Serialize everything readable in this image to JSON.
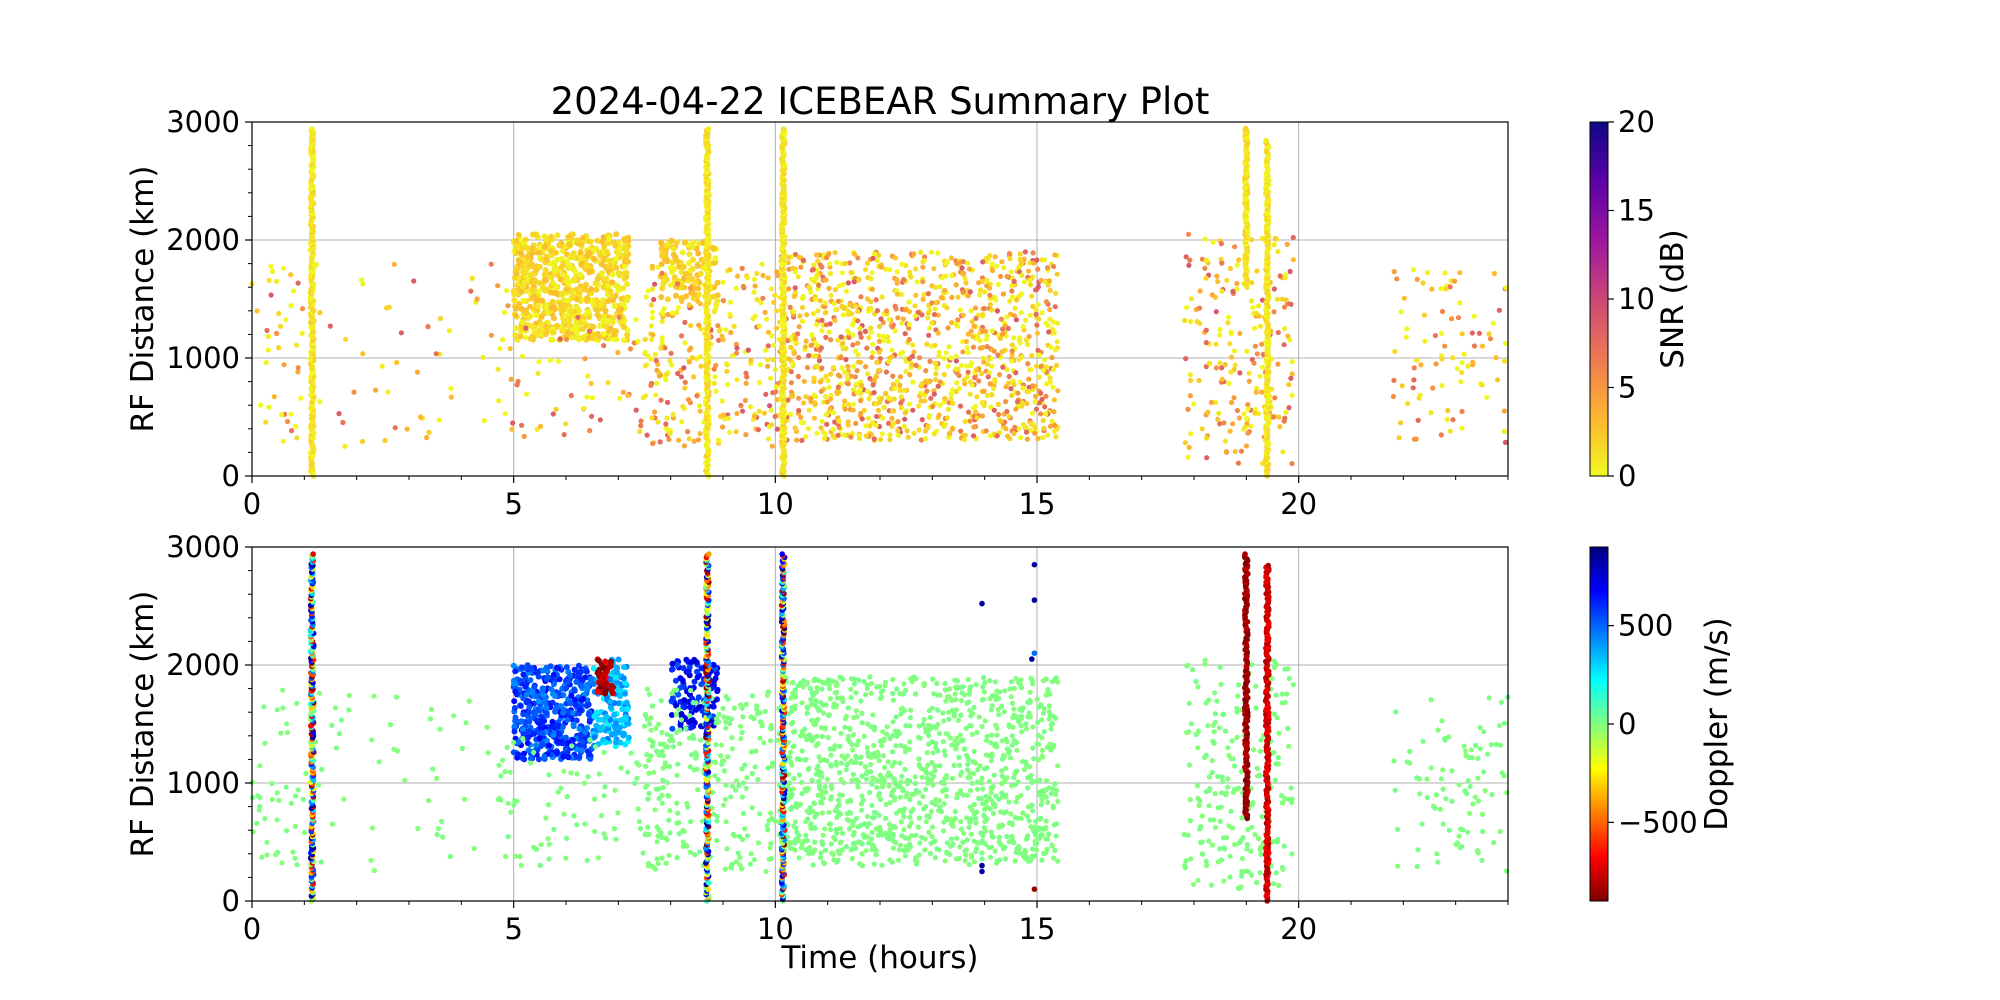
{
  "figure": {
    "title": "2024-04-22 ICEBEAR Summary Plot"
  },
  "chart_data": [
    {
      "type": "scatter",
      "panel": "snr",
      "title": "2024-04-22 ICEBEAR Summary Plot",
      "xlabel": "",
      "ylabel": "RF Distance (km)",
      "xlim": [
        0,
        24
      ],
      "ylim": [
        0,
        3000
      ],
      "xticks": [
        0,
        5,
        10,
        15,
        20
      ],
      "yticks": [
        0,
        1000,
        2000,
        3000
      ],
      "grid": true,
      "colorbar": {
        "label": "SNR (dB)",
        "range": [
          0,
          20
        ],
        "ticks": [
          0,
          5,
          10,
          15,
          20
        ],
        "colormap": "plasma_r",
        "colors": [
          "#f0f921",
          "#fdb42f",
          "#ed7953",
          "#cc4778",
          "#9c179e",
          "#5c01a6",
          "#0d0887"
        ]
      },
      "segments": [
        {
          "x": [
            0.0,
            1.0
          ],
          "y": [
            250,
            1800
          ],
          "n": 40,
          "mode": "sparse"
        },
        {
          "x": [
            1.0,
            4.9
          ],
          "y": [
            250,
            1800
          ],
          "n": 55,
          "mode": "sparse"
        },
        {
          "x": [
            5.0,
            7.2
          ],
          "y": [
            1150,
            2050
          ],
          "n": 700,
          "mode": "dense"
        },
        {
          "x": [
            4.7,
            8.0
          ],
          "y": [
            300,
            1400
          ],
          "n": 90,
          "mode": "sparse"
        },
        {
          "x": [
            7.8,
            8.9
          ],
          "y": [
            1450,
            2000
          ],
          "n": 120,
          "mode": "dense"
        },
        {
          "x": [
            7.5,
            10.1
          ],
          "y": [
            250,
            1800
          ],
          "n": 250,
          "mode": "sparse"
        },
        {
          "x": [
            10.1,
            15.4
          ],
          "y": [
            300,
            1900
          ],
          "n": 1200,
          "mode": "field"
        },
        {
          "x": [
            17.8,
            19.9
          ],
          "y": [
            100,
            2050
          ],
          "n": 220,
          "mode": "sparse"
        },
        {
          "x": [
            21.8,
            24.0
          ],
          "y": [
            250,
            1750
          ],
          "n": 90,
          "mode": "sparse"
        }
      ],
      "vertical_streaks": [
        {
          "x": 1.15,
          "y": [
            0,
            2950
          ]
        },
        {
          "x": 8.7,
          "y": [
            0,
            2950
          ]
        },
        {
          "x": 10.15,
          "y": [
            0,
            2950
          ]
        },
        {
          "x": 19.0,
          "y": [
            1600,
            2950
          ]
        },
        {
          "x": 19.4,
          "y": [
            0,
            2850
          ]
        }
      ]
    },
    {
      "type": "scatter",
      "panel": "doppler",
      "title": "",
      "xlabel": "Time (hours)",
      "ylabel": "RF Distance (km)",
      "xlim": [
        0,
        24
      ],
      "ylim": [
        0,
        3000
      ],
      "xticks": [
        0,
        5,
        10,
        15,
        20
      ],
      "yticks": [
        0,
        1000,
        2000,
        3000
      ],
      "grid": true,
      "colorbar": {
        "label": "Doppler (m/s)",
        "range": [
          -900,
          900
        ],
        "ticks": [
          -500,
          0,
          500
        ],
        "tick_labels": [
          "−500",
          "0",
          "500"
        ],
        "colormap": "jet_r",
        "colors": [
          "#7f0000",
          "#ff0000",
          "#ff8000",
          "#ffff00",
          "#80ff80",
          "#00ffff",
          "#0080ff",
          "#0000ff",
          "#00007f"
        ]
      },
      "segments": [
        {
          "x": [
            0.0,
            1.0
          ],
          "y": [
            250,
            1800
          ],
          "n": 40,
          "mode": "sparse",
          "doppler": 0
        },
        {
          "x": [
            1.0,
            4.9
          ],
          "y": [
            250,
            1800
          ],
          "n": 55,
          "mode": "sparse",
          "doppler": 0
        },
        {
          "x": [
            5.0,
            6.5
          ],
          "y": [
            1200,
            2000
          ],
          "n": 450,
          "mode": "dense",
          "doppler": 550
        },
        {
          "x": [
            6.5,
            7.2
          ],
          "y": [
            1300,
            2050
          ],
          "n": 150,
          "mode": "dense",
          "doppler": 350
        },
        {
          "x": [
            6.6,
            6.9
          ],
          "y": [
            1750,
            2050
          ],
          "n": 40,
          "mode": "dense",
          "doppler": -800
        },
        {
          "x": [
            4.7,
            8.0
          ],
          "y": [
            300,
            1400
          ],
          "n": 90,
          "mode": "sparse",
          "doppler": 0
        },
        {
          "x": [
            8.0,
            8.9
          ],
          "y": [
            1450,
            2050
          ],
          "n": 120,
          "mode": "dense",
          "doppler": 650
        },
        {
          "x": [
            7.5,
            10.1
          ],
          "y": [
            250,
            1800
          ],
          "n": 250,
          "mode": "sparse",
          "doppler": 0
        },
        {
          "x": [
            10.1,
            15.4
          ],
          "y": [
            300,
            1900
          ],
          "n": 1200,
          "mode": "field",
          "doppler": 0
        },
        {
          "x": [
            17.8,
            19.9
          ],
          "y": [
            100,
            2050
          ],
          "n": 220,
          "mode": "sparse",
          "doppler": 0
        },
        {
          "x": [
            21.8,
            24.0
          ],
          "y": [
            250,
            1750
          ],
          "n": 90,
          "mode": "sparse",
          "doppler": 0
        }
      ],
      "vertical_streaks": [
        {
          "x": 1.15,
          "y": [
            0,
            2950
          ],
          "doppler": "mixed"
        },
        {
          "x": 8.7,
          "y": [
            0,
            2950
          ],
          "doppler": "mixed"
        },
        {
          "x": 10.15,
          "y": [
            0,
            2950
          ],
          "doppler": "mixed"
        },
        {
          "x": 19.0,
          "y": [
            700,
            2950
          ],
          "doppler": -850
        },
        {
          "x": 19.4,
          "y": [
            0,
            2850
          ],
          "doppler": -750
        }
      ],
      "outliers": [
        {
          "x": 13.95,
          "y": 2520,
          "doppler": 850
        },
        {
          "x": 14.95,
          "y": 2850,
          "doppler": 850
        },
        {
          "x": 14.95,
          "y": 2550,
          "doppler": 850
        },
        {
          "x": 14.9,
          "y": 2050,
          "doppler": 850
        },
        {
          "x": 14.95,
          "y": 2100,
          "doppler": 500
        },
        {
          "x": 13.95,
          "y": 300,
          "doppler": 850
        },
        {
          "x": 13.95,
          "y": 250,
          "doppler": 850
        },
        {
          "x": 14.95,
          "y": 100,
          "doppler": -850
        }
      ]
    }
  ]
}
